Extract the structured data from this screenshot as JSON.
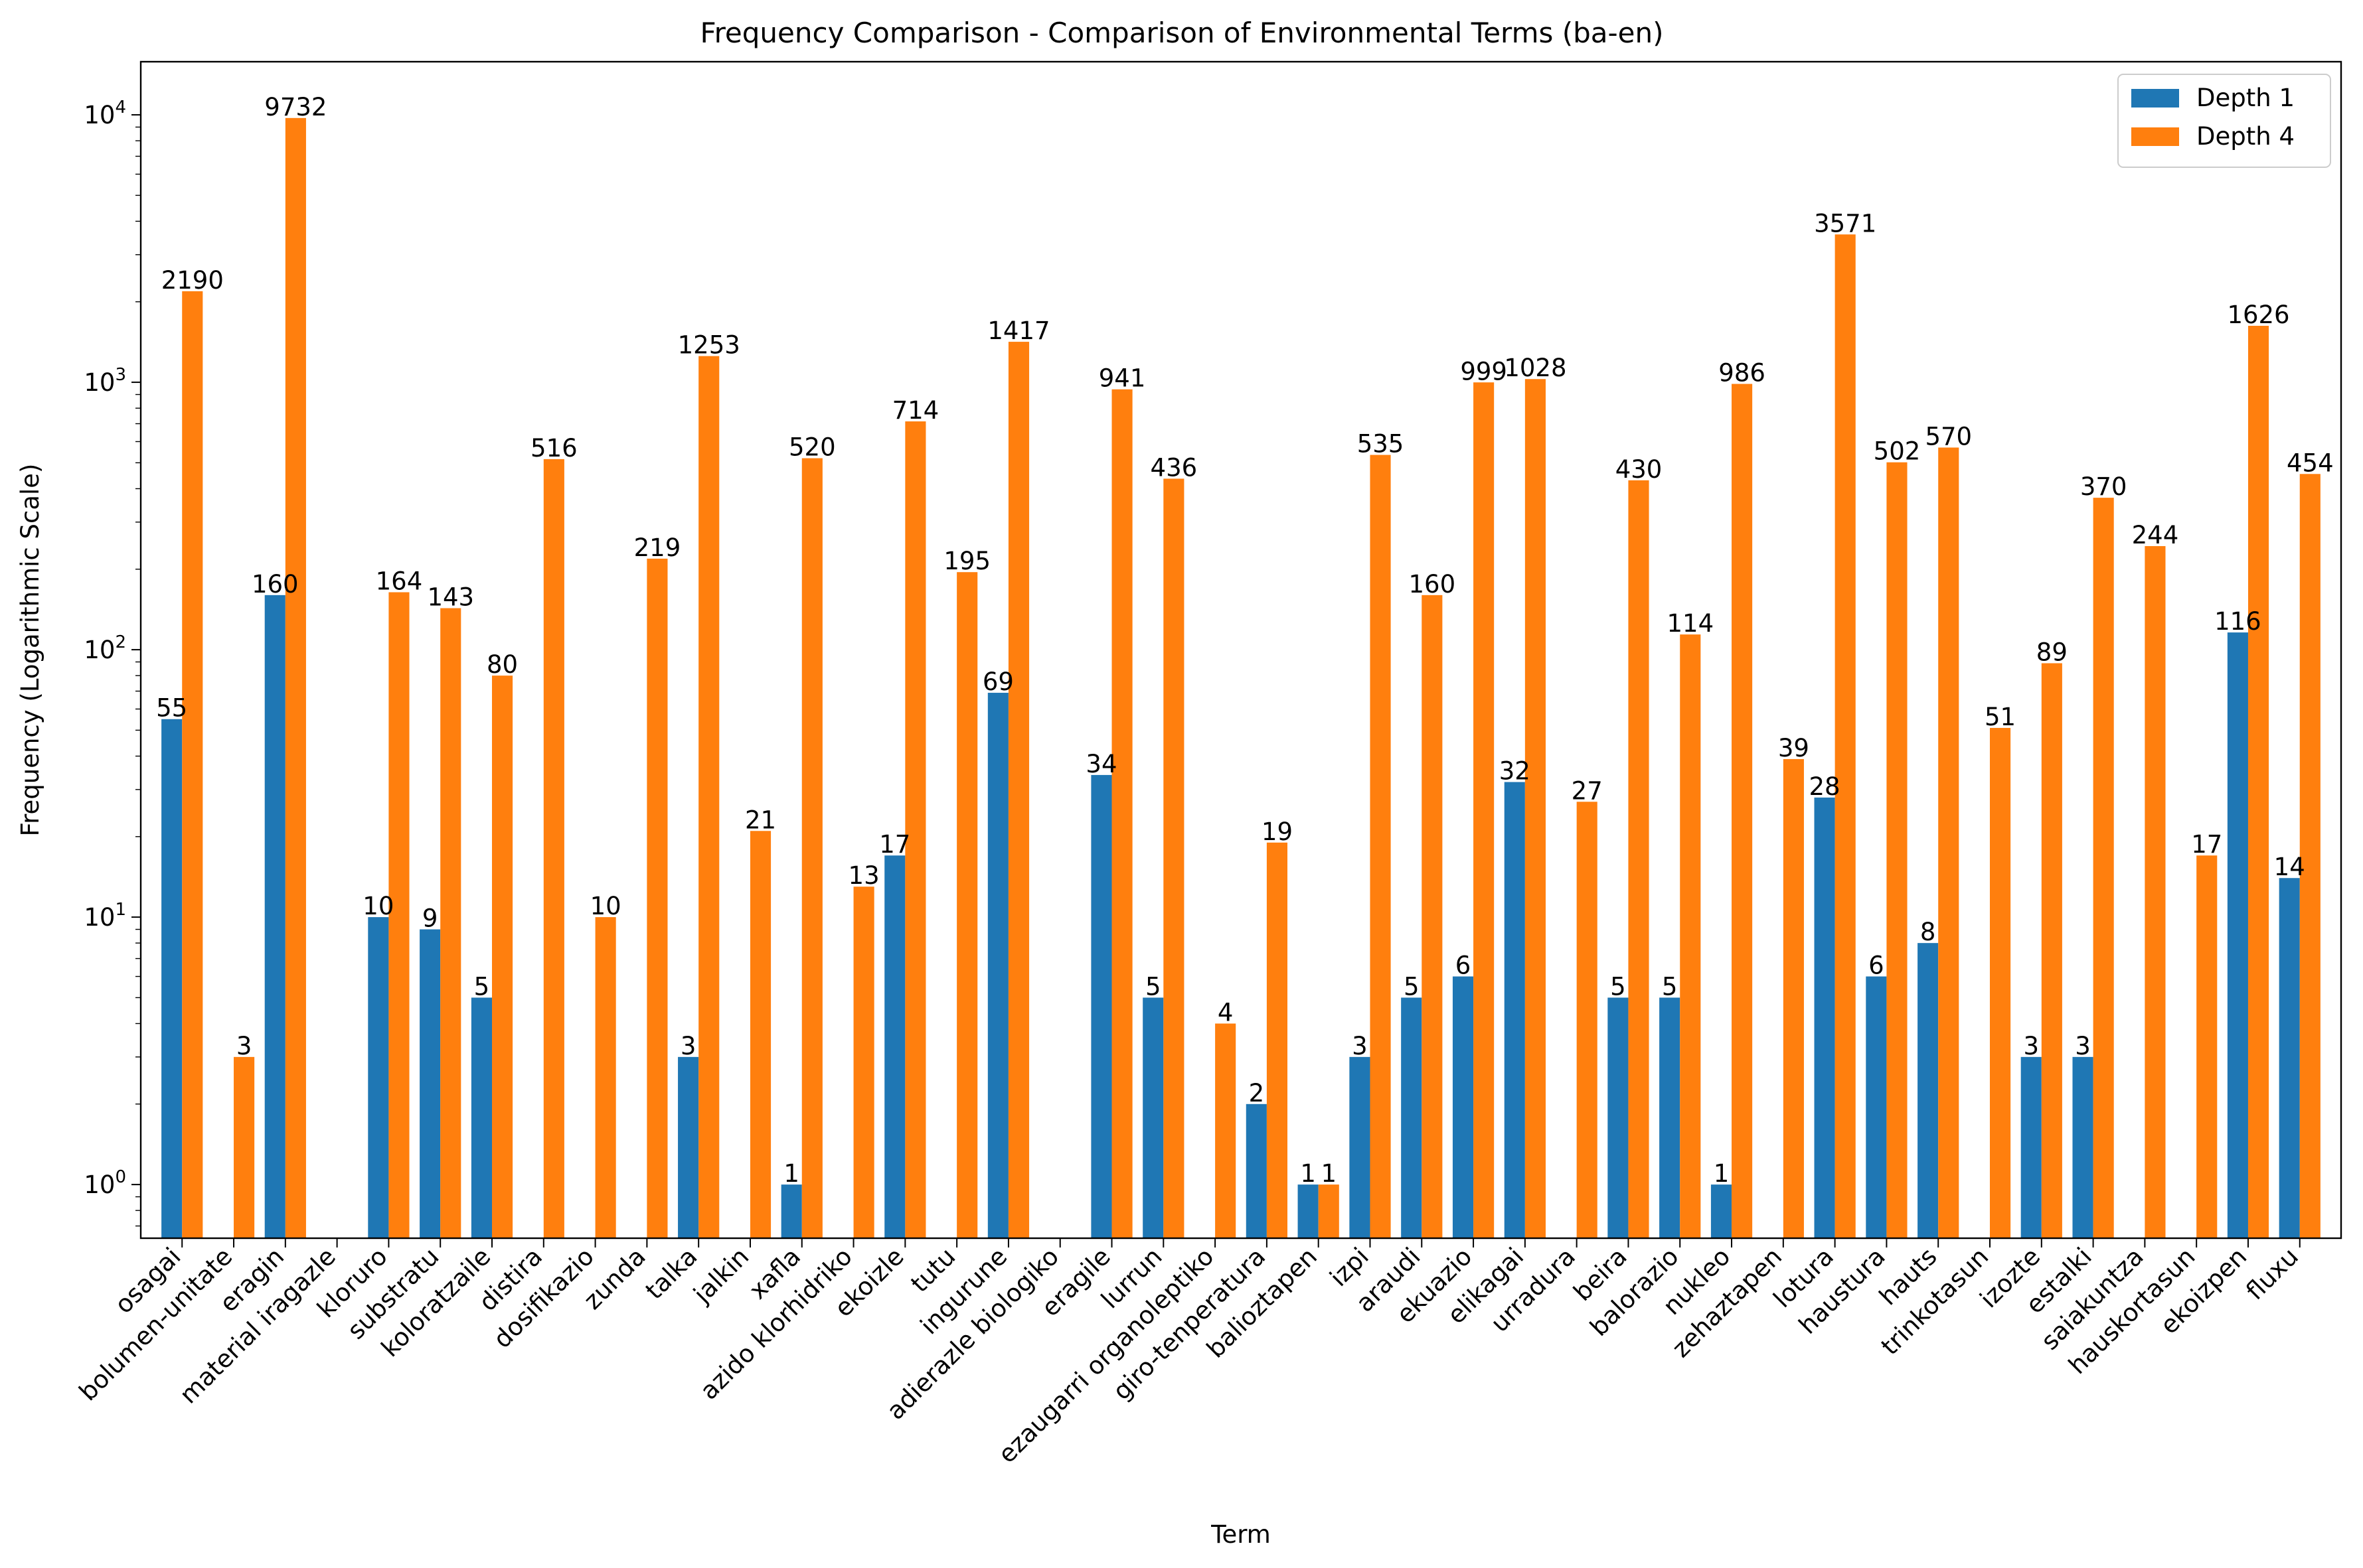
{
  "chart_data": {
    "type": "bar",
    "title": "Frequency Comparison - Comparison of Environmental Terms (ba-en)",
    "xlabel": "Term",
    "ylabel": "Frequency (Logarithmic Scale)",
    "y_scale": "log",
    "ylim": [
      0.63,
      15800
    ],
    "y_ticks": [
      {
        "value": 1,
        "base": "10",
        "exp": "0"
      },
      {
        "value": 10,
        "base": "10",
        "exp": "1"
      },
      {
        "value": 100,
        "base": "10",
        "exp": "2"
      },
      {
        "value": 1000,
        "base": "10",
        "exp": "3"
      },
      {
        "value": 10000,
        "base": "10",
        "exp": "4"
      }
    ],
    "legend_position": "top-right",
    "grid": false,
    "categories": [
      "osagai",
      "bolumen-unitate",
      "eragin",
      "material iragazle",
      "kloruro",
      "substratu",
      "koloratzaile",
      "distira",
      "dosifikazio",
      "zunda",
      "talka",
      "jalkin",
      "xafla",
      "azido klorhidriko",
      "ekoizle",
      "tutu",
      "ingurune",
      "adierazle biologiko",
      "eragile",
      "lurrun",
      "ezaugarri organoleptiko",
      "giro-tenperatura",
      "balioztapen",
      "izpi",
      "araudi",
      "ekuazio",
      "elikagai",
      "urradura",
      "beira",
      "balorazio",
      "nukleo",
      "zehaztapen",
      "lotura",
      "haustura",
      "hauts",
      "trinkotasun",
      "izozte",
      "estalki",
      "saiakuntza",
      "hauskortasun",
      "ekoizpen",
      "fluxu"
    ],
    "series": [
      {
        "name": "Depth 1",
        "color": "#1f77b4",
        "values": [
          55,
          null,
          160,
          null,
          10,
          9,
          5,
          null,
          null,
          null,
          3,
          null,
          1,
          null,
          17,
          null,
          69,
          null,
          34,
          5,
          null,
          2,
          1,
          3,
          5,
          6,
          32,
          null,
          5,
          5,
          1,
          null,
          28,
          6,
          8,
          null,
          3,
          3,
          null,
          null,
          116,
          14
        ]
      },
      {
        "name": "Depth 4",
        "color": "#ff7f0e",
        "values": [
          2190,
          3,
          9732,
          null,
          164,
          143,
          80,
          516,
          10,
          219,
          1253,
          21,
          520,
          13,
          714,
          195,
          1417,
          null,
          941,
          436,
          4,
          19,
          1,
          535,
          160,
          999,
          1028,
          27,
          430,
          114,
          986,
          39,
          3571,
          502,
          570,
          51,
          89,
          370,
          244,
          17,
          1626,
          454
        ]
      }
    ]
  }
}
